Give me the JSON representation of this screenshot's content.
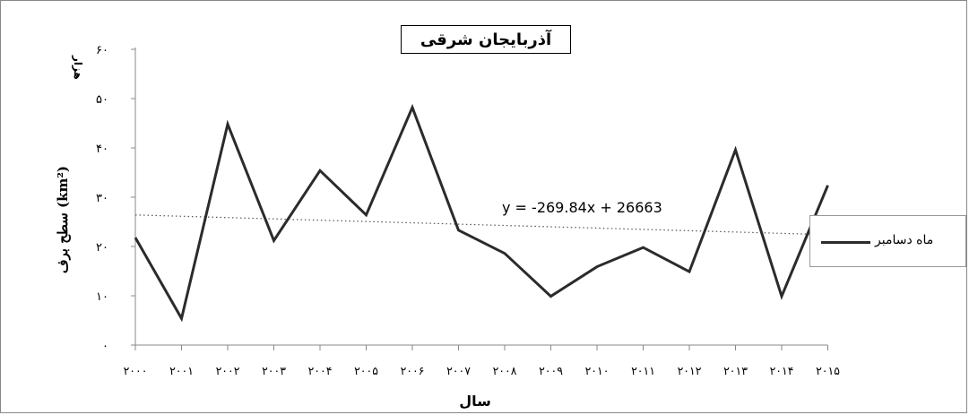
{
  "chart_data": {
    "type": "line",
    "title": "آذربایجان شرقی",
    "ylabel": "سطح برف (km²)",
    "yunit": "هزار",
    "xlabel": "سال",
    "ylim": [
      0,
      60
    ],
    "yticks": [
      {
        "value": 0,
        "label": "۰"
      },
      {
        "value": 10,
        "label": "۱۰"
      },
      {
        "value": 20,
        "label": "۲۰"
      },
      {
        "value": 30,
        "label": "۳۰"
      },
      {
        "value": 40,
        "label": "۴۰"
      },
      {
        "value": 50,
        "label": "۵۰"
      },
      {
        "value": 60,
        "label": "۶۰"
      }
    ],
    "categories": [
      "۲۰۰۰",
      "۲۰۰۱",
      "۲۰۰۲",
      "۲۰۰۳",
      "۲۰۰۴",
      "۲۰۰۵",
      "۲۰۰۶",
      "۲۰۰۷",
      "۲۰۰۸",
      "۲۰۰۹",
      "۲۰۱۰",
      "۲۰۱۱",
      "۲۰۱۲",
      "۲۰۱۳",
      "۲۰۱۴",
      "۲۰۱۵"
    ],
    "series": [
      {
        "name": "ماه دسامبر",
        "values": [
          21.8,
          5.4,
          44.8,
          21.2,
          35.4,
          26.4,
          48.2,
          23.3,
          18.6,
          9.9,
          15.9,
          19.8,
          14.9,
          39.6,
          9.9,
          32.4
        ]
      }
    ],
    "trendline": {
      "label": "y = -269.84x + 26663",
      "start": 26.4,
      "end": 22.4
    },
    "legend_position": "right",
    "grid": false,
    "colors": {
      "line": "#2b2b2b",
      "trend": "#555555",
      "axis": "#888888"
    }
  }
}
